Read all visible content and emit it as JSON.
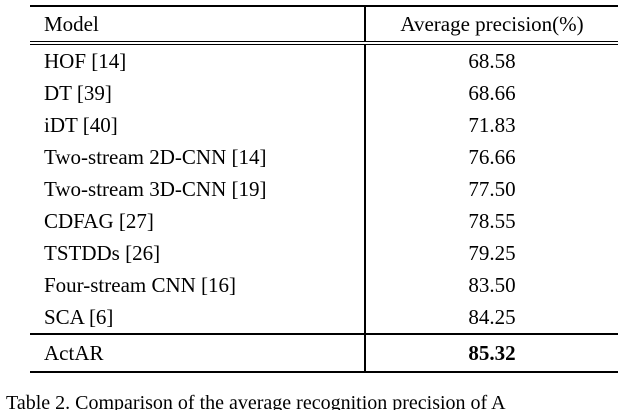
{
  "table": {
    "headers": {
      "model": "Model",
      "precision": "Average precision(%)"
    },
    "rows": [
      {
        "model": "HOF [14]",
        "value": "68.58"
      },
      {
        "model": "DT [39]",
        "value": "68.66"
      },
      {
        "model": "iDT [40]",
        "value": "71.83"
      },
      {
        "model": "Two-stream 2D-CNN [14]",
        "value": "76.66"
      },
      {
        "model": "Two-stream 3D-CNN [19]",
        "value": "77.50"
      },
      {
        "model": "CDFAG [27]",
        "value": "78.55"
      },
      {
        "model": "TSTDDs [26]",
        "value": "79.25"
      },
      {
        "model": "Four-stream CNN [16]",
        "value": "83.50"
      },
      {
        "model": "SCA [6]",
        "value": "84.25"
      }
    ],
    "highlight_row": {
      "model": "ActAR",
      "value": "85.32"
    }
  },
  "caption": "Table 2. Comparison of the average recognition precision of A"
}
